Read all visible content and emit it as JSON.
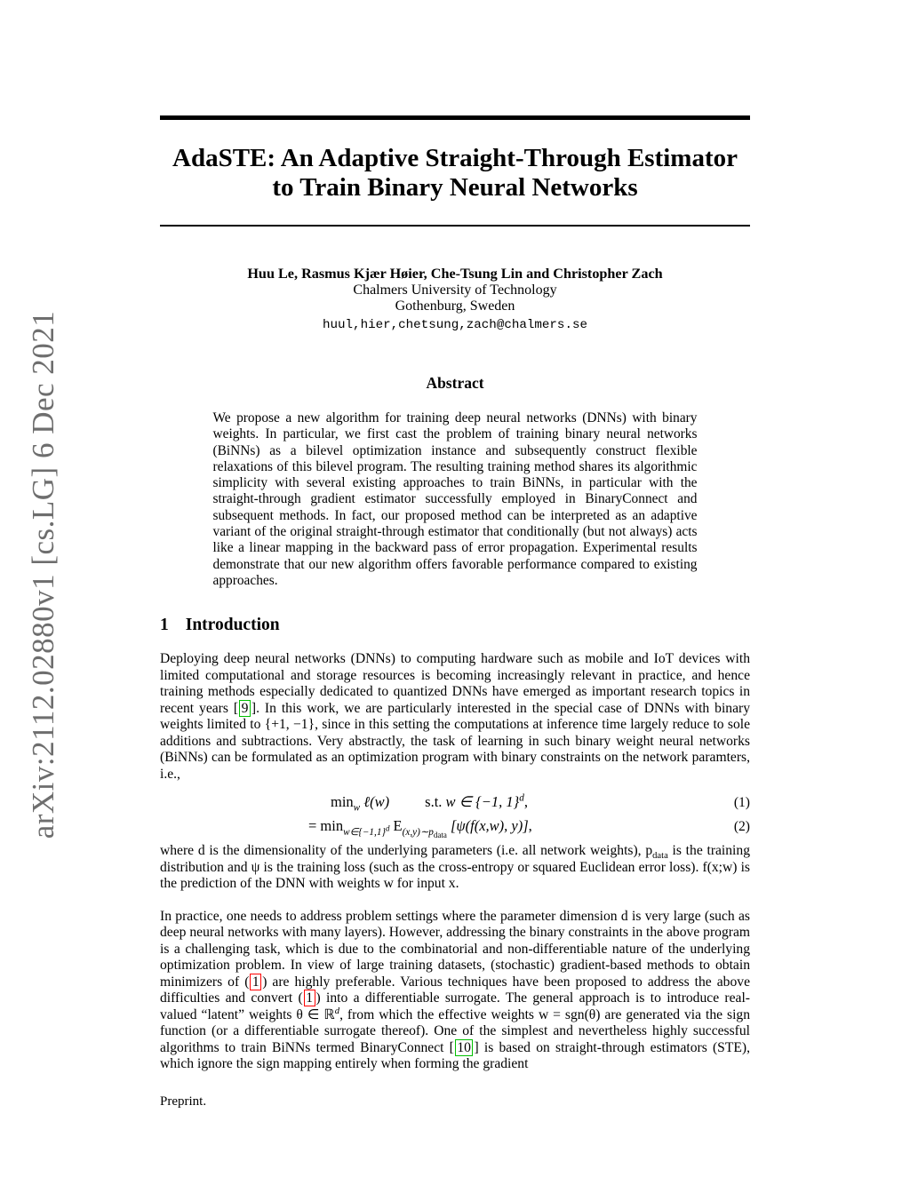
{
  "watermark": {
    "text": "arXiv:2112.02880v1  [cs.LG]  6 Dec 2021"
  },
  "header": {
    "title_line1": "AdaSTE: An Adaptive Straight-Through Estimator",
    "title_line2": "to Train Binary Neural Networks"
  },
  "authors": {
    "names": "Huu Le, Rasmus Kjær Høier, Che-Tsung Lin and Christopher Zach",
    "affiliation": "Chalmers University of Technology",
    "location": "Gothenburg, Sweden",
    "email": "huul,hier,chetsung,zach@chalmers.se"
  },
  "abstract": {
    "heading": "Abstract",
    "body": "We propose a new algorithm for training deep neural networks (DNNs) with binary weights. In particular, we first cast the problem of training binary neural networks (BiNNs) as a bilevel optimization instance and subsequently construct flexible relaxations of this bilevel program. The resulting training method shares its algorithmic simplicity with several existing approaches to train BiNNs, in particular with the straight-through gradient estimator successfully employed in BinaryConnect and subsequent methods. In fact, our proposed method can be interpreted as an adaptive variant of the original straight-through estimator that conditionally (but not always) acts like a linear mapping in the backward pass of error propagation. Experimental results demonstrate that our new algorithm offers favorable performance compared to existing approaches."
  },
  "intro": {
    "number": "1",
    "title": "Introduction",
    "p1": {
      "t1": "Deploying deep neural networks (DNNs) to computing hardware such as mobile and IoT devices with limited computational and storage resources is becoming increasingly relevant in practice, and hence training methods especially dedicated to quantized DNNs have emerged as important research topics in recent years [",
      "cite": "9",
      "t2": "]. In this work, we are particularly interested in the special case of DNNs with binary weights limited to {+1, −1}, since in this setting the computations at inference time largely reduce to sole additions and subtractions. Very abstractly, the task of learning in such binary weight neural networks (BiNNs) can be formulated as an optimization program with binary constraints on the network paramters, i.e.,"
    },
    "eq1": {
      "op": "min",
      "op_sub": "w",
      "arg": "ℓ(w)",
      "st": "s.t.",
      "cons": "w ∈ {−1, 1}",
      "cons_sup": "d",
      "comma": ",",
      "label": "(1)"
    },
    "eq2": {
      "op": "= min",
      "sub": "w∈{−1,1}",
      "sub_sup": "d",
      "expect": "E",
      "expect_sub": "(x,y)∼p",
      "expect_subsub": "data",
      "arg": "[ψ(f(x,w), y)]",
      "comma": ",",
      "label": "(2)"
    },
    "p2": {
      "t1": "where d is the dimensionality of the underlying parameters (i.e. all network weights), p",
      "sub": "data",
      "t2": " is the training distribution and ψ is the training loss (such as the cross-entropy or squared Euclidean error loss). f(x;w) is the prediction of the DNN with weights w for input x."
    },
    "p3": {
      "t1": "In practice, one needs to address problem settings where the parameter dimension d is very large (such as deep neural networks with many layers). However, addressing the binary constraints in the above program is a challenging task, which is due to the combinatorial and non-differentiable nature of the underlying optimization problem. In view of large training datasets, (stochastic) gradient-based methods to obtain minimizers of (",
      "eqref1": "1",
      "t2": ") are highly preferable. Various techniques have been proposed to address the above difficulties and convert (",
      "eqref2": "1",
      "t3": ") into a differentiable surrogate. The general approach is to introduce real-valued “latent” weights θ ∈ ℝ",
      "sup": "d",
      "t4": ", from which the effective weights w = sgn(θ) are generated via the sign function (or a differentiable surrogate thereof). One of the simplest and nevertheless highly successful algorithms to train BiNNs termed BinaryConnect [",
      "cite": "10",
      "t5": "] is based on straight-through estimators (STE), which ignore the sign mapping entirely when forming the gradient"
    }
  },
  "footer": {
    "note": "Preprint."
  },
  "colors": {
    "citation_box_border": "#00c000",
    "equation_ref_box_border": "#ff0000",
    "watermark_text": "#6e6e6e",
    "text": "#000000",
    "background": "#ffffff"
  }
}
